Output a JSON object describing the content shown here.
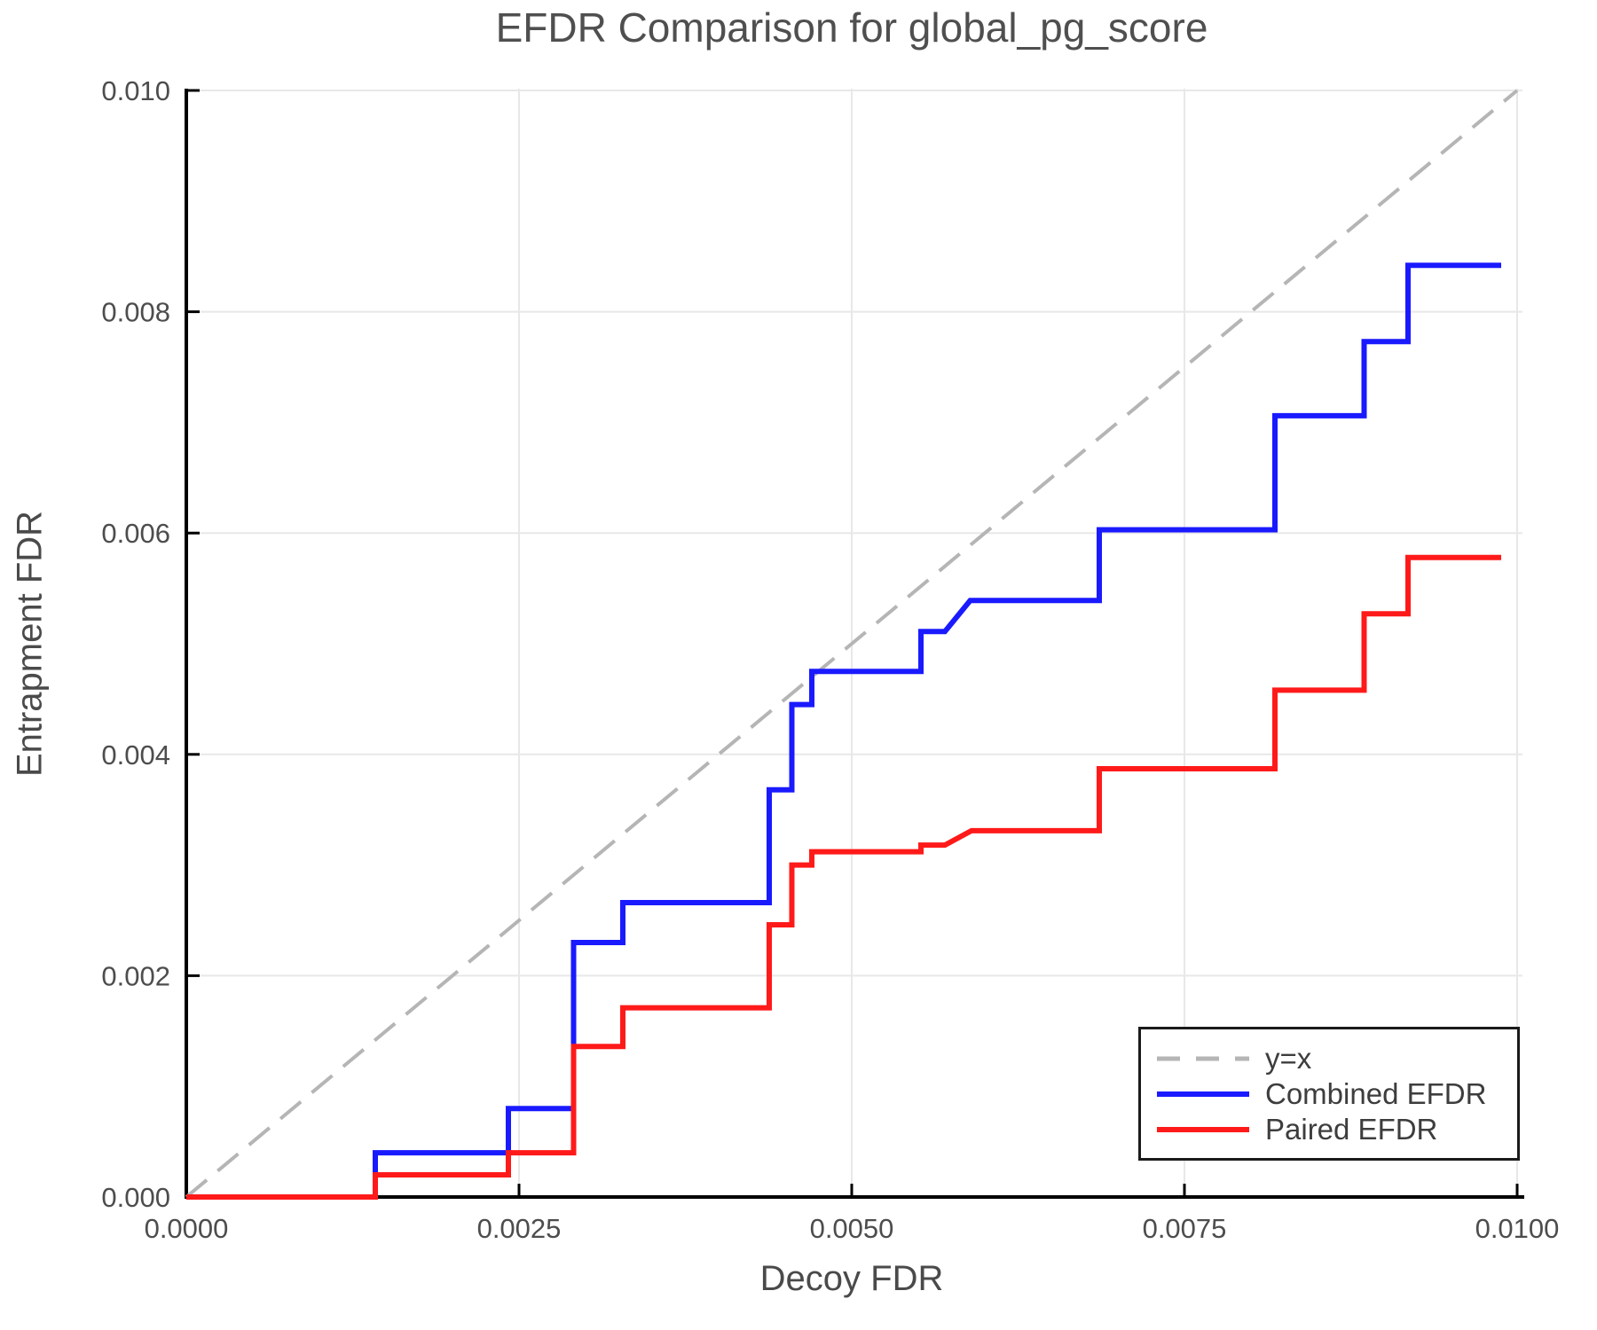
{
  "chart_data": {
    "type": "line",
    "title": "EFDR Comparison for global_pg_score",
    "xlabel": "Decoy FDR",
    "ylabel": "Entrapment FDR",
    "xlim": [
      0,
      0.01
    ],
    "ylim": [
      0,
      0.01
    ],
    "grid": true,
    "legend_position": "lower right",
    "x_ticks": [
      {
        "value": 0.0,
        "label": "0.0000"
      },
      {
        "value": 0.0025,
        "label": "0.0025"
      },
      {
        "value": 0.005,
        "label": "0.0050"
      },
      {
        "value": 0.0075,
        "label": "0.0075"
      },
      {
        "value": 0.01,
        "label": "0.0100"
      }
    ],
    "y_ticks": [
      {
        "value": 0.0,
        "label": "0.000"
      },
      {
        "value": 0.002,
        "label": "0.002"
      },
      {
        "value": 0.004,
        "label": "0.004"
      },
      {
        "value": 0.006,
        "label": "0.006"
      },
      {
        "value": 0.008,
        "label": "0.008"
      },
      {
        "value": 0.01,
        "label": "0.010"
      }
    ],
    "series": [
      {
        "name": "y=x",
        "style": "dashed",
        "color": "#b5b5b5",
        "width": 4,
        "points": [
          [
            0,
            0
          ],
          [
            0.01,
            0.01
          ]
        ]
      },
      {
        "name": "Combined EFDR",
        "style": "solid",
        "color": "#1a1aff",
        "width": 6,
        "points": [
          [
            0,
            0
          ],
          [
            0.00142,
            0
          ],
          [
            0.00142,
            0.0004
          ],
          [
            0.00242,
            0.0004
          ],
          [
            0.00242,
            0.0008
          ],
          [
            0.00291,
            0.0008
          ],
          [
            0.00291,
            0.0023
          ],
          [
            0.00328,
            0.0023
          ],
          [
            0.00328,
            0.00266
          ],
          [
            0.00438,
            0.00266
          ],
          [
            0.00438,
            0.00368
          ],
          [
            0.00455,
            0.00368
          ],
          [
            0.00455,
            0.00445
          ],
          [
            0.0047,
            0.00445
          ],
          [
            0.0047,
            0.00475
          ],
          [
            0.00552,
            0.00475
          ],
          [
            0.00552,
            0.00511
          ],
          [
            0.0057,
            0.00511
          ],
          [
            0.00589,
            0.00539
          ],
          [
            0.00686,
            0.00539
          ],
          [
            0.00686,
            0.00603
          ],
          [
            0.00818,
            0.00603
          ],
          [
            0.00818,
            0.00706
          ],
          [
            0.00885,
            0.00706
          ],
          [
            0.00885,
            0.00773
          ],
          [
            0.00918,
            0.00773
          ],
          [
            0.00918,
            0.00842
          ],
          [
            0.00988,
            0.00842
          ]
        ]
      },
      {
        "name": "Paired EFDR",
        "style": "solid",
        "color": "#ff1a1a",
        "width": 6,
        "points": [
          [
            0,
            0
          ],
          [
            0.00142,
            0
          ],
          [
            0.00142,
            0.0002
          ],
          [
            0.00242,
            0.0002
          ],
          [
            0.00242,
            0.0004
          ],
          [
            0.00291,
            0.0004
          ],
          [
            0.00291,
            0.00136
          ],
          [
            0.00328,
            0.00136
          ],
          [
            0.00328,
            0.00171
          ],
          [
            0.00438,
            0.00171
          ],
          [
            0.00438,
            0.00246
          ],
          [
            0.00455,
            0.00246
          ],
          [
            0.00455,
            0.003
          ],
          [
            0.0047,
            0.003
          ],
          [
            0.0047,
            0.00312
          ],
          [
            0.00552,
            0.00312
          ],
          [
            0.00552,
            0.00318
          ],
          [
            0.0057,
            0.00318
          ],
          [
            0.0059,
            0.00331
          ],
          [
            0.00686,
            0.00331
          ],
          [
            0.00686,
            0.00387
          ],
          [
            0.00818,
            0.00387
          ],
          [
            0.00818,
            0.00458
          ],
          [
            0.00885,
            0.00458
          ],
          [
            0.00885,
            0.00527
          ],
          [
            0.00918,
            0.00527
          ],
          [
            0.00918,
            0.00578
          ],
          [
            0.00988,
            0.00578
          ]
        ]
      }
    ]
  },
  "legend": {
    "items": [
      {
        "label": "y=x"
      },
      {
        "label": "Combined EFDR"
      },
      {
        "label": "Paired EFDR"
      }
    ]
  }
}
